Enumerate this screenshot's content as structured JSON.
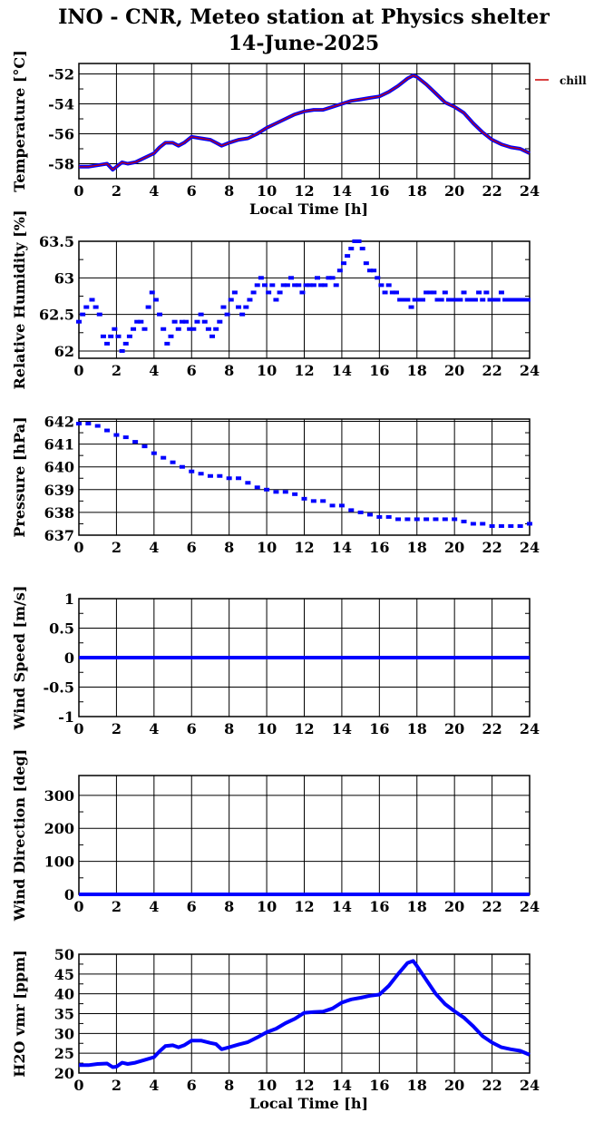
{
  "header": {
    "title": "INO - CNR, Meteo station at Physics shelter",
    "date": "14-June-2025"
  },
  "legend": {
    "label": "chill",
    "color": "#cc0000"
  },
  "colors": {
    "data": "#0000ff",
    "overlay": "#cc0000",
    "grid": "#000000"
  },
  "chart_data": [
    {
      "type": "line",
      "ylabel": "Temperature [°C]",
      "xlabel": "Local Time [h]",
      "xlim": [
        0,
        24
      ],
      "ylim": [
        -59,
        -51.3
      ],
      "xticks": [
        0,
        2,
        4,
        6,
        8,
        10,
        12,
        14,
        16,
        18,
        20,
        22,
        24
      ],
      "yticks": [
        -58,
        -56,
        -54,
        -52
      ],
      "series": [
        {
          "name": "chill",
          "x": [
            0,
            0.5,
            1,
            1.5,
            1.8,
            2,
            2.3,
            2.6,
            3,
            3.5,
            4,
            4.3,
            4.6,
            5,
            5.3,
            5.6,
            6,
            6.5,
            7,
            7.3,
            7.6,
            8,
            8.5,
            9,
            9.5,
            10,
            10.5,
            11,
            11.5,
            12,
            12.5,
            13,
            13.5,
            14,
            14.5,
            15,
            15.5,
            16,
            16.5,
            17,
            17.5,
            17.8,
            18,
            18.5,
            19,
            19.5,
            20,
            20.5,
            21,
            21.5,
            22,
            22.5,
            23,
            23.5,
            24
          ],
          "y": [
            -58.2,
            -58.2,
            -58.1,
            -58,
            -58.4,
            -58.2,
            -57.9,
            -58,
            -57.9,
            -57.6,
            -57.3,
            -56.9,
            -56.6,
            -56.6,
            -56.8,
            -56.6,
            -56.2,
            -56.3,
            -56.4,
            -56.6,
            -56.8,
            -56.6,
            -56.4,
            -56.3,
            -56,
            -55.6,
            -55.3,
            -55,
            -54.7,
            -54.5,
            -54.4,
            -54.4,
            -54.2,
            -54,
            -53.8,
            -53.7,
            -53.6,
            -53.5,
            -53.2,
            -52.8,
            -52.3,
            -52.1,
            -52.2,
            -52.7,
            -53.3,
            -53.9,
            -54.2,
            -54.6,
            -55.3,
            -55.9,
            -56.4,
            -56.7,
            -56.9,
            -57,
            -57.3
          ]
        }
      ]
    },
    {
      "type": "scatter",
      "ylabel": "Relative Humidity [%]",
      "xlim": [
        0,
        24
      ],
      "ylim": [
        61.9,
        63.5
      ],
      "xticks": [
        0,
        2,
        4,
        6,
        8,
        10,
        12,
        14,
        16,
        18,
        20,
        22,
        24
      ],
      "yticks": [
        62,
        62.5,
        63,
        63.5
      ],
      "series": [
        {
          "x": [
            0,
            0.2,
            0.4,
            0.7,
            0.9,
            1.1,
            1.3,
            1.5,
            1.7,
            1.9,
            2.1,
            2.3,
            2.5,
            2.7,
            2.9,
            3.1,
            3.3,
            3.5,
            3.7,
            3.9,
            4.1,
            4.3,
            4.5,
            4.7,
            4.9,
            5.1,
            5.3,
            5.5,
            5.7,
            5.9,
            6.1,
            6.3,
            6.5,
            6.7,
            6.9,
            7.1,
            7.3,
            7.5,
            7.7,
            7.9,
            8.1,
            8.3,
            8.5,
            8.7,
            8.9,
            9.1,
            9.3,
            9.5,
            9.7,
            9.9,
            10.1,
            10.3,
            10.5,
            10.7,
            10.9,
            11.1,
            11.3,
            11.5,
            11.7,
            11.9,
            12.1,
            12.3,
            12.5,
            12.7,
            12.9,
            13.1,
            13.3,
            13.5,
            13.7,
            13.9,
            14.1,
            14.3,
            14.5,
            14.7,
            14.9,
            15.1,
            15.3,
            15.5,
            15.7,
            15.9,
            16.1,
            16.3,
            16.5,
            16.7,
            16.9,
            17.1,
            17.3,
            17.5,
            17.7,
            17.9,
            18.1,
            18.3,
            18.5,
            18.7,
            18.9,
            19.1,
            19.3,
            19.5,
            19.7,
            19.9,
            20.1,
            20.3,
            20.5,
            20.7,
            20.9,
            21.1,
            21.3,
            21.5,
            21.7,
            21.9,
            22.1,
            22.3,
            22.5,
            22.7,
            22.9,
            23.1,
            23.3,
            23.5,
            23.7,
            23.9
          ],
          "y": [
            62.4,
            62.5,
            62.6,
            62.7,
            62.6,
            62.5,
            62.2,
            62.1,
            62.2,
            62.3,
            62.2,
            62.0,
            62.1,
            62.2,
            62.3,
            62.4,
            62.4,
            62.3,
            62.6,
            62.8,
            62.7,
            62.5,
            62.3,
            62.1,
            62.2,
            62.4,
            62.3,
            62.4,
            62.4,
            62.3,
            62.3,
            62.4,
            62.5,
            62.4,
            62.3,
            62.2,
            62.3,
            62.4,
            62.6,
            62.5,
            62.7,
            62.8,
            62.6,
            62.5,
            62.6,
            62.7,
            62.8,
            62.9,
            63.0,
            62.9,
            62.8,
            62.9,
            62.7,
            62.8,
            62.9,
            62.9,
            63.0,
            62.9,
            62.9,
            62.8,
            62.9,
            62.9,
            62.9,
            63.0,
            62.9,
            62.9,
            63.0,
            63.0,
            62.9,
            63.1,
            63.2,
            63.3,
            63.4,
            63.5,
            63.5,
            63.4,
            63.2,
            63.1,
            63.1,
            63.0,
            62.9,
            62.8,
            62.9,
            62.8,
            62.8,
            62.7,
            62.7,
            62.7,
            62.6,
            62.7,
            62.7,
            62.7,
            62.8,
            62.8,
            62.8,
            62.7,
            62.7,
            62.8,
            62.7,
            62.7,
            62.7,
            62.7,
            62.8,
            62.7,
            62.7,
            62.7,
            62.8,
            62.7,
            62.8,
            62.7,
            62.7,
            62.7,
            62.8,
            62.7,
            62.7,
            62.7,
            62.7,
            62.7,
            62.7,
            62.7
          ]
        }
      ]
    },
    {
      "type": "scatter",
      "ylabel": "Pressure [hPa]",
      "xlim": [
        0,
        24
      ],
      "ylim": [
        637,
        642.1
      ],
      "xticks": [
        0,
        2,
        4,
        6,
        8,
        10,
        12,
        14,
        16,
        18,
        20,
        22,
        24
      ],
      "yticks": [
        637,
        638,
        639,
        640,
        641,
        642
      ],
      "series": [
        {
          "x": [
            0,
            0.5,
            1,
            1.5,
            2,
            2.5,
            3,
            3.5,
            4,
            4.5,
            5,
            5.5,
            6,
            6.5,
            7,
            7.5,
            8,
            8.5,
            9,
            9.5,
            10,
            10.5,
            11,
            11.5,
            12,
            12.5,
            13,
            13.5,
            14,
            14.5,
            15,
            15.5,
            16,
            16.5,
            17,
            17.5,
            18,
            18.5,
            19,
            19.5,
            20,
            20.5,
            21,
            21.5,
            22,
            22.5,
            23,
            23.5,
            24
          ],
          "y": [
            641.9,
            641.9,
            641.8,
            641.6,
            641.4,
            641.3,
            641.1,
            640.9,
            640.6,
            640.4,
            640.2,
            640.0,
            639.8,
            639.7,
            639.6,
            639.6,
            639.5,
            639.5,
            639.3,
            639.1,
            639.0,
            638.9,
            638.9,
            638.8,
            638.6,
            638.5,
            638.5,
            638.3,
            638.3,
            638.1,
            638.0,
            637.9,
            637.8,
            637.8,
            637.7,
            637.7,
            637.7,
            637.7,
            637.7,
            637.7,
            637.7,
            637.6,
            637.5,
            637.5,
            637.4,
            637.4,
            637.4,
            637.4,
            637.5
          ]
        }
      ]
    },
    {
      "type": "line",
      "ylabel": "Wind Speed [m/s]",
      "xlim": [
        0,
        24
      ],
      "ylim": [
        -1,
        1
      ],
      "xticks": [
        0,
        2,
        4,
        6,
        8,
        10,
        12,
        14,
        16,
        18,
        20,
        22,
        24
      ],
      "yticks": [
        -1,
        -0.5,
        0,
        0.5,
        1
      ],
      "series": [
        {
          "x": [
            0,
            24
          ],
          "y": [
            0,
            0
          ]
        }
      ]
    },
    {
      "type": "line",
      "ylabel": "Wind Direction [deg]",
      "xlim": [
        0,
        24
      ],
      "ylim": [
        0,
        360
      ],
      "xticks": [
        0,
        2,
        4,
        6,
        8,
        10,
        12,
        14,
        16,
        18,
        20,
        22,
        24
      ],
      "yticks": [
        0,
        100,
        200,
        300
      ],
      "series": [
        {
          "x": [
            0,
            24
          ],
          "y": [
            0,
            0
          ]
        }
      ]
    },
    {
      "type": "line",
      "ylabel": "H2O vmr [ppm]",
      "xlabel": "Local Time [h]",
      "xlim": [
        0,
        24
      ],
      "ylim": [
        20,
        50
      ],
      "xticks": [
        0,
        2,
        4,
        6,
        8,
        10,
        12,
        14,
        16,
        18,
        20,
        22,
        24
      ],
      "yticks": [
        20,
        25,
        30,
        35,
        40,
        45,
        50
      ],
      "series": [
        {
          "x": [
            0,
            0.5,
            1,
            1.5,
            1.8,
            2,
            2.3,
            2.6,
            3,
            3.5,
            4,
            4.3,
            4.6,
            5,
            5.3,
            5.6,
            6,
            6.5,
            7,
            7.3,
            7.6,
            8,
            8.5,
            9,
            9.5,
            10,
            10.5,
            11,
            11.5,
            12,
            12.5,
            13,
            13.5,
            14,
            14.5,
            15,
            15.5,
            16,
            16.5,
            17,
            17.5,
            17.8,
            18,
            18.5,
            19,
            19.5,
            20,
            20.5,
            21,
            21.5,
            22,
            22.5,
            23,
            23.5,
            24
          ],
          "y": [
            22,
            22,
            22.3,
            22.4,
            21.5,
            21.6,
            22.6,
            22.3,
            22.6,
            23.3,
            24,
            25.5,
            26.8,
            27,
            26.5,
            27,
            28.2,
            28.2,
            27.6,
            27.3,
            26,
            26.5,
            27.2,
            27.8,
            29,
            30.3,
            31.2,
            32.6,
            33.7,
            35.2,
            35.4,
            35.5,
            36.3,
            37.8,
            38.6,
            39,
            39.5,
            39.8,
            42,
            45,
            47.8,
            48.3,
            47,
            43.5,
            40,
            37.4,
            35.6,
            34,
            31.8,
            29.3,
            27.7,
            26.5,
            26,
            25.6,
            24.6
          ]
        }
      ]
    }
  ]
}
